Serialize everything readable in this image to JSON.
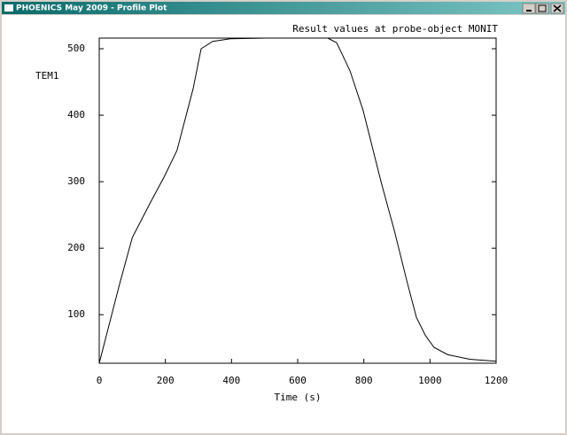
{
  "window": {
    "title": "PHOENICS May 2009 - Profile Plot"
  },
  "chart_data": {
    "type": "line",
    "title": "Result values at probe-object MONIT",
    "x_label": "Time (s)",
    "y_label": "TEM1",
    "x": [
      0,
      62,
      100,
      155,
      196,
      235,
      284,
      308,
      343,
      396,
      504,
      691,
      718,
      758,
      798,
      852,
      892,
      932,
      959,
      986,
      1012,
      1053,
      1120,
      1200
    ],
    "values": [
      27,
      147,
      216,
      269,
      307,
      347,
      440,
      500,
      511,
      515,
      516,
      516,
      509,
      467,
      407,
      300,
      227,
      147,
      96,
      69,
      51,
      40,
      33,
      30
    ],
    "color": "#000000",
    "xlim": [
      0,
      1200
    ],
    "xticks": [
      0,
      200,
      400,
      600,
      800,
      1000,
      1200
    ],
    "ylim": [
      27,
      516
    ],
    "yticks": [
      100,
      200,
      300,
      400,
      500
    ]
  }
}
